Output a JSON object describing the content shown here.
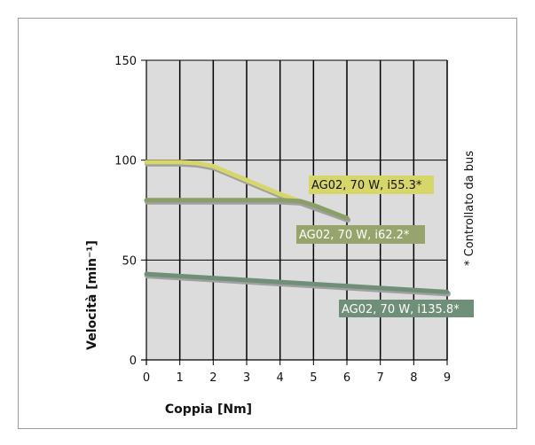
{
  "chart_data": {
    "type": "line",
    "xlabel": "Coppia [Nm]",
    "ylabel": "Velocità [min⁻¹]",
    "xlim": [
      0,
      9
    ],
    "ylim": [
      0,
      150
    ],
    "x_ticks": [
      0,
      1,
      2,
      3,
      4,
      5,
      6,
      7,
      8,
      9
    ],
    "y_ticks": [
      0,
      50,
      100,
      150
    ],
    "grid": true,
    "background": "#dcdcdc",
    "note": "* Controllato da bus",
    "series": [
      {
        "name": "AG02, 70 W, i55.3*",
        "color": "#d6d66a",
        "label_bg": "#d6d66a",
        "points": [
          [
            0,
            99
          ],
          [
            1,
            99
          ],
          [
            1.5,
            98.5
          ],
          [
            2,
            97
          ],
          [
            3,
            90
          ],
          [
            4,
            83
          ],
          [
            5,
            77
          ],
          [
            6,
            71
          ]
        ]
      },
      {
        "name": "AG02, 70 W, i62.2*",
        "color": "#8a9e68",
        "label_bg": "#97a56d",
        "points": [
          [
            0,
            80
          ],
          [
            1,
            80
          ],
          [
            2,
            80
          ],
          [
            3,
            80
          ],
          [
            4,
            80
          ],
          [
            4.6,
            79.5
          ],
          [
            5,
            77.5
          ],
          [
            6,
            71
          ]
        ]
      },
      {
        "name": "AG02, 70 W, i135.8*",
        "color": "#6f8f78",
        "label_bg": "#6f8f78",
        "points": [
          [
            0,
            43
          ],
          [
            1,
            42
          ],
          [
            2,
            41
          ],
          [
            3,
            40
          ],
          [
            4,
            39
          ],
          [
            5,
            38
          ],
          [
            6,
            37
          ],
          [
            7,
            36
          ],
          [
            8,
            35
          ],
          [
            9,
            34
          ]
        ]
      }
    ]
  }
}
